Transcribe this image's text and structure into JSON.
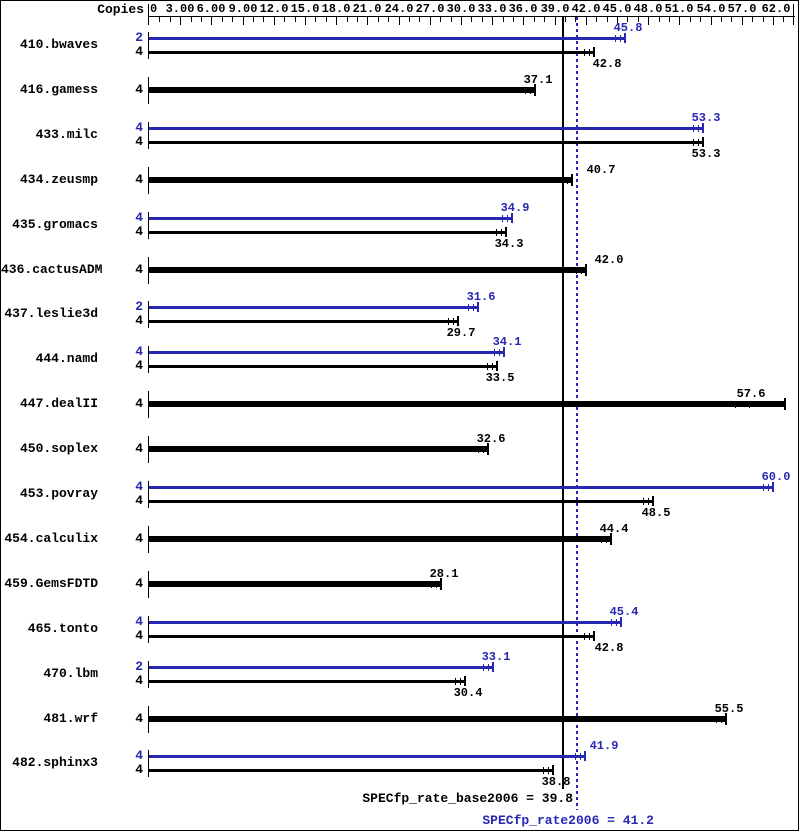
{
  "header": {
    "copies": "Copies"
  },
  "axis": {
    "min": 0,
    "max": 62,
    "minor_step": 1,
    "major_step": 3,
    "tick_values": [
      0,
      3,
      6,
      9,
      12,
      15,
      18,
      21,
      24,
      27,
      30,
      33,
      36,
      39,
      42,
      45,
      48,
      51,
      54,
      57,
      62
    ],
    "tick_labels": [
      "0",
      "3.00",
      "6.00",
      "9.00",
      "12.0",
      "15.0",
      "18.0",
      "21.0",
      "24.0",
      "27.0",
      "30.0",
      "33.0",
      "36.0",
      "39.0",
      "42.0",
      "45.0",
      "48.0",
      "51.0",
      "54.0",
      "57.0",
      "62.0"
    ]
  },
  "chart_data": {
    "type": "bar",
    "orientation": "horizontal",
    "xlim": [
      0,
      62
    ],
    "legend": "blue bars = peak (SPECfp_rate2006), black bars = base (SPECfp_rate_base2006)",
    "groups": [
      {
        "name": "410.bwaves",
        "bars": [
          {
            "type": "peak",
            "copies": "2",
            "value": 45.8,
            "label": "45.8"
          },
          {
            "type": "base",
            "copies": "4",
            "value": 42.8,
            "label": "42.8",
            "label_dx": 10
          }
        ]
      },
      {
        "name": "416.gamess",
        "bars": [
          {
            "type": "base",
            "copies": "4",
            "value": 37.1,
            "label": "37.1"
          }
        ]
      },
      {
        "name": "433.milc",
        "bars": [
          {
            "type": "peak",
            "copies": "4",
            "value": 53.3,
            "label": "53.3"
          },
          {
            "type": "base",
            "copies": "4",
            "value": 53.3,
            "label": "53.3"
          }
        ]
      },
      {
        "name": "434.zeusmp",
        "bars": [
          {
            "type": "base",
            "copies": "4",
            "value": 40.7,
            "label": "40.7",
            "label_dx": 26
          }
        ]
      },
      {
        "name": "435.gromacs",
        "bars": [
          {
            "type": "peak",
            "copies": "4",
            "value": 34.9,
            "label": "34.9"
          },
          {
            "type": "base",
            "copies": "4",
            "value": 34.3,
            "label": "34.3"
          }
        ]
      },
      {
        "name": "436.cactusADM",
        "bars": [
          {
            "type": "base",
            "copies": "4",
            "value": 42.0,
            "label": "42.0",
            "label_dx": 20
          }
        ]
      },
      {
        "name": "437.leslie3d",
        "bars": [
          {
            "type": "peak",
            "copies": "2",
            "value": 31.6,
            "label": "31.6"
          },
          {
            "type": "base",
            "copies": "4",
            "value": 29.7,
            "label": "29.7"
          }
        ]
      },
      {
        "name": "444.namd",
        "bars": [
          {
            "type": "peak",
            "copies": "4",
            "value": 34.1,
            "label": "34.1"
          },
          {
            "type": "base",
            "copies": "4",
            "value": 33.5,
            "label": "33.5"
          }
        ]
      },
      {
        "name": "447.dealII",
        "bars": [
          {
            "type": "base",
            "copies": "4",
            "value": 57.6,
            "label": "57.6",
            "bar_to": 61.2,
            "run_ticks": [
              56.3,
              57.7
            ]
          }
        ]
      },
      {
        "name": "450.soplex",
        "bars": [
          {
            "type": "base",
            "copies": "4",
            "value": 32.6,
            "label": "32.6"
          }
        ]
      },
      {
        "name": "453.povray",
        "bars": [
          {
            "type": "peak",
            "copies": "4",
            "value": 60.0,
            "label": "60.0"
          },
          {
            "type": "base",
            "copies": "4",
            "value": 48.5,
            "label": "48.5"
          }
        ]
      },
      {
        "name": "454.calculix",
        "bars": [
          {
            "type": "base",
            "copies": "4",
            "value": 44.4,
            "label": "44.4"
          }
        ]
      },
      {
        "name": "459.GemsFDTD",
        "bars": [
          {
            "type": "base",
            "copies": "4",
            "value": 28.1,
            "label": "28.1"
          }
        ]
      },
      {
        "name": "465.tonto",
        "bars": [
          {
            "type": "peak",
            "copies": "4",
            "value": 45.4,
            "label": "45.4"
          },
          {
            "type": "base",
            "copies": "4",
            "value": 42.8,
            "label": "42.8",
            "label_dx": 12
          }
        ]
      },
      {
        "name": "470.lbm",
        "bars": [
          {
            "type": "peak",
            "copies": "2",
            "value": 33.1,
            "label": "33.1"
          },
          {
            "type": "base",
            "copies": "4",
            "value": 30.4,
            "label": "30.4"
          }
        ]
      },
      {
        "name": "481.wrf",
        "bars": [
          {
            "type": "base",
            "copies": "4",
            "value": 55.5,
            "label": "55.5"
          }
        ]
      },
      {
        "name": "482.sphinx3",
        "bars": [
          {
            "type": "peak",
            "copies": "4",
            "value": 41.9,
            "label": "41.9",
            "label_dx": 16
          },
          {
            "type": "base",
            "copies": "4",
            "value": 38.8,
            "label": "38.8"
          }
        ]
      }
    ],
    "reference_lines": [
      {
        "name": "base",
        "label": "SPECfp_rate_base2006 = 39.8",
        "value": 39.8,
        "style": "solid",
        "color": "#000000"
      },
      {
        "name": "peak",
        "label": "SPECfp_rate2006 = 41.2",
        "value": 41.2,
        "style": "dotted",
        "color": "#2727b2"
      }
    ]
  },
  "colors": {
    "peak": "#2727b2",
    "base": "#000000",
    "background": "#ffffff"
  }
}
